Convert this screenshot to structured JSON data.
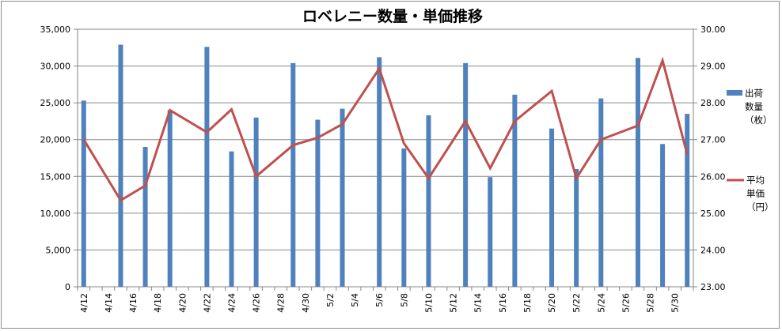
{
  "chart_data": {
    "type": "bar+line",
    "title": "ロベレニー数量・単価推移",
    "x": [
      "4/12",
      "4/13",
      "4/14",
      "4/15",
      "4/16",
      "4/17",
      "4/18",
      "4/19",
      "4/20",
      "4/21",
      "4/22",
      "4/23",
      "4/24",
      "4/25",
      "4/26",
      "4/27",
      "4/28",
      "4/29",
      "4/30",
      "5/1",
      "5/2",
      "5/3",
      "5/4",
      "5/5",
      "5/6",
      "5/7",
      "5/8",
      "5/9",
      "5/10",
      "5/11",
      "5/12",
      "5/13",
      "5/14",
      "5/15",
      "5/16",
      "5/17",
      "5/18",
      "5/19",
      "5/20",
      "5/21",
      "5/22",
      "5/23",
      "5/24",
      "5/25",
      "5/26",
      "5/27",
      "5/28",
      "5/29",
      "5/30",
      "5/31"
    ],
    "x_tick_labels": [
      "4/12",
      "4/14",
      "4/16",
      "4/18",
      "4/20",
      "4/22",
      "4/24",
      "4/26",
      "4/28",
      "4/30",
      "5/2",
      "5/4",
      "5/6",
      "5/8",
      "5/10",
      "5/12",
      "5/14",
      "5/16",
      "5/18",
      "5/20",
      "5/22",
      "5/24",
      "5/26",
      "5/28",
      "5/30"
    ],
    "bar_points": [
      {
        "x": "4/12",
        "y": 25300
      },
      {
        "x": "4/15",
        "y": 32900
      },
      {
        "x": "4/17",
        "y": 19000
      },
      {
        "x": "4/19",
        "y": 24000
      },
      {
        "x": "4/22",
        "y": 32600
      },
      {
        "x": "4/24",
        "y": 18400
      },
      {
        "x": "4/26",
        "y": 23000
      },
      {
        "x": "4/29",
        "y": 30400
      },
      {
        "x": "5/1",
        "y": 22700
      },
      {
        "x": "5/3",
        "y": 24200
      },
      {
        "x": "5/6",
        "y": 31200
      },
      {
        "x": "5/8",
        "y": 18800
      },
      {
        "x": "5/10",
        "y": 23300
      },
      {
        "x": "5/13",
        "y": 30400
      },
      {
        "x": "5/15",
        "y": 14900
      },
      {
        "x": "5/17",
        "y": 26100
      },
      {
        "x": "5/20",
        "y": 21500
      },
      {
        "x": "5/22",
        "y": 16000
      },
      {
        "x": "5/24",
        "y": 25600
      },
      {
        "x": "5/27",
        "y": 31100
      },
      {
        "x": "5/29",
        "y": 19400
      },
      {
        "x": "5/31",
        "y": 23500
      }
    ],
    "line_points": [
      {
        "x": "4/12",
        "y": 27.0
      },
      {
        "x": "4/15",
        "y": 25.35
      },
      {
        "x": "4/17",
        "y": 25.75
      },
      {
        "x": "4/19",
        "y": 27.8
      },
      {
        "x": "4/22",
        "y": 27.2
      },
      {
        "x": "4/24",
        "y": 27.82
      },
      {
        "x": "4/26",
        "y": 26.0
      },
      {
        "x": "4/29",
        "y": 26.85
      },
      {
        "x": "5/1",
        "y": 27.05
      },
      {
        "x": "5/3",
        "y": 27.42
      },
      {
        "x": "5/6",
        "y": 28.93
      },
      {
        "x": "5/8",
        "y": 26.9
      },
      {
        "x": "5/10",
        "y": 25.95
      },
      {
        "x": "5/13",
        "y": 27.5
      },
      {
        "x": "5/15",
        "y": 26.22
      },
      {
        "x": "5/17",
        "y": 27.5
      },
      {
        "x": "5/20",
        "y": 28.32
      },
      {
        "x": "5/22",
        "y": 25.95
      },
      {
        "x": "5/24",
        "y": 27.0
      },
      {
        "x": "5/27",
        "y": 27.38
      },
      {
        "x": "5/29",
        "y": 29.15
      },
      {
        "x": "5/31",
        "y": 26.6
      }
    ],
    "series": [
      {
        "name": "出荷数量（枚）",
        "type": "bar",
        "axis": "left",
        "color": "#4f81bd"
      },
      {
        "name": "平均単価（円）",
        "type": "line",
        "axis": "right",
        "color": "#c0504d"
      }
    ],
    "y_left": {
      "min": 0,
      "max": 35000,
      "step": 5000,
      "tick_labels": [
        "0",
        "5,000",
        "10,000",
        "15,000",
        "20,000",
        "25,000",
        "30,000",
        "35,000"
      ]
    },
    "y_right": {
      "min": 23.0,
      "max": 30.0,
      "step": 1.0,
      "tick_labels": [
        "23.00",
        "24.00",
        "25.00",
        "26.00",
        "27.00",
        "28.00",
        "29.00",
        "30.00"
      ]
    },
    "legend": {
      "placement": "right",
      "items": [
        {
          "lines": [
            "出荷",
            "数量",
            "（枚）"
          ],
          "color": "#4f81bd",
          "marker": "bar"
        },
        {
          "lines": [
            "平均",
            "単価",
            "（円）"
          ],
          "color": "#c0504d",
          "marker": "line"
        }
      ]
    },
    "grid": true
  }
}
